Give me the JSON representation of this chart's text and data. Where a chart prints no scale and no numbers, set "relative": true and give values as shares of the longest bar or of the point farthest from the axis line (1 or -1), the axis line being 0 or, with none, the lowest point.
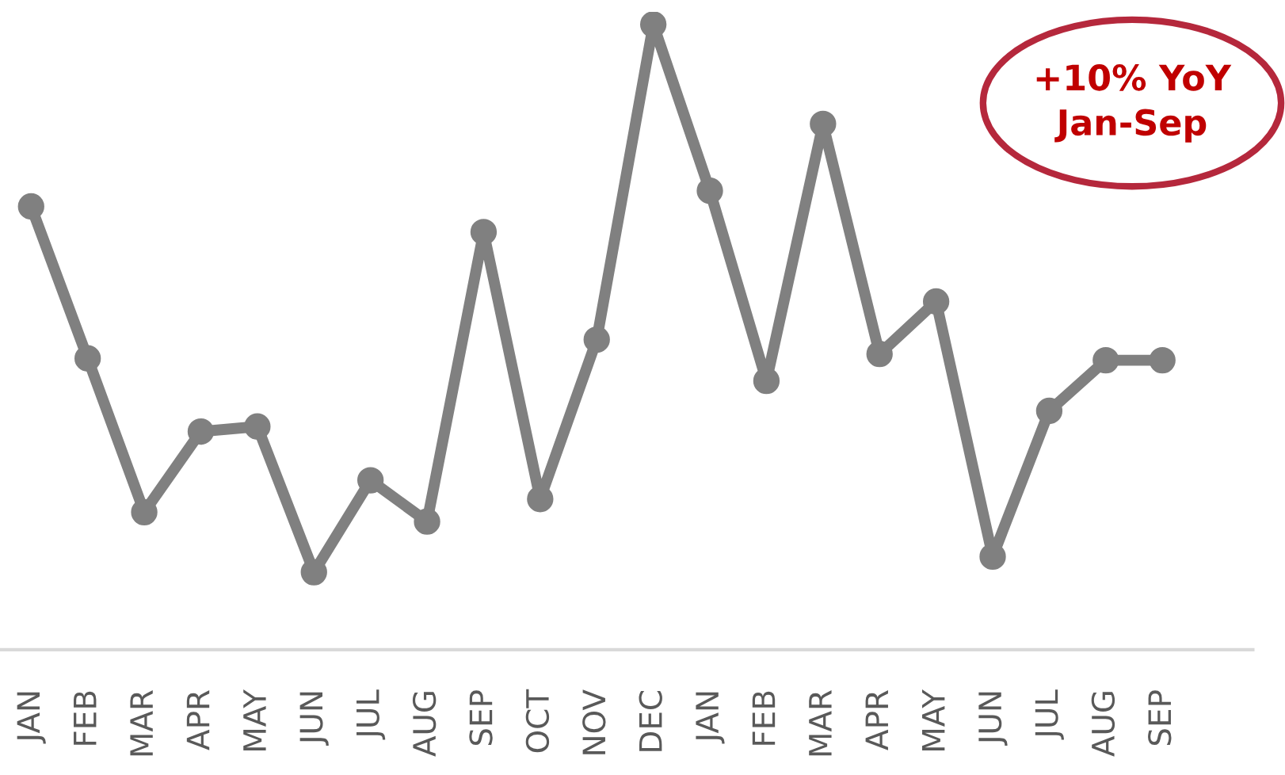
{
  "chart_data": {
    "type": "line",
    "relative": true,
    "categories": [
      "JAN",
      "FEB",
      "MAR",
      "APR",
      "MAY",
      "JUN",
      "JUL",
      "AUG",
      "SEP",
      "OCT",
      "NOV",
      "DEC",
      "JAN",
      "FEB",
      "MAR",
      "APR",
      "MAY",
      "JUN",
      "JUL",
      "AUG",
      "SEP"
    ],
    "series": [
      {
        "color": "#808080",
        "values": [
          0.709,
          0.466,
          0.22,
          0.349,
          0.357,
          0.124,
          0.271,
          0.205,
          0.668,
          0.241,
          0.496,
          1,
          0.734,
          0.43,
          0.841,
          0.473,
          0.557,
          0.149,
          0.382,
          0.463,
          0.463
        ]
      }
    ],
    "marker": "circle",
    "line_style": "solid",
    "grid": false,
    "legend": false,
    "annotations": [
      "+10% YoY\nJan-Sep"
    ]
  }
}
